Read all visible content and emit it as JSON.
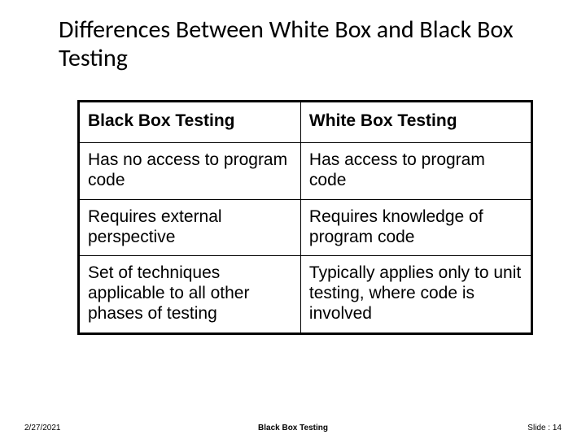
{
  "title": "Differences Between White Box and Black Box Testing",
  "table": {
    "headers": [
      "Black Box Testing",
      "White Box Testing"
    ],
    "rows": [
      [
        "Has no access to program code",
        "Has access to program code"
      ],
      [
        "Requires external perspective",
        "Requires knowledge of program code"
      ],
      [
        "Set of techniques applicable to all other phases of testing",
        "Typically applies only to unit testing, where code is involved"
      ]
    ]
  },
  "footer": {
    "date": "2/27/2021",
    "center": "Black Box Testing",
    "slide_label": "Slide : 14"
  },
  "colors": {
    "background": "#ffffff",
    "text": "#000000",
    "border": "#000000"
  },
  "typography": {
    "title_fontsize": 30,
    "cell_fontsize": 21,
    "footer_fontsize": 10,
    "title_font": "Calibri",
    "body_font": "Arial"
  }
}
